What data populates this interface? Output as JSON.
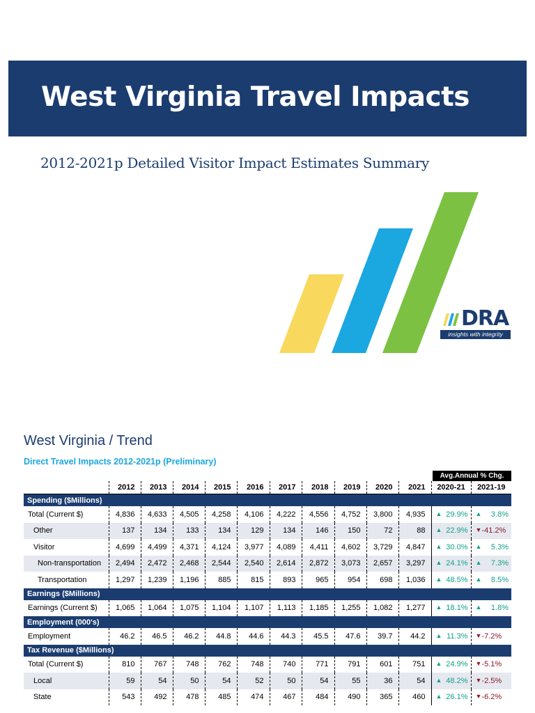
{
  "title": "West Virginia Travel Impacts",
  "subtitle": "2012-2021p Detailed Visitor Impact Estimates Summary",
  "logo": {
    "name": "DRA",
    "tagline": "insights with integrity",
    "mark_icon": "bar-stripes-icon"
  },
  "decor": {
    "stripe_colors": [
      "#f9d85e",
      "#1ba7e0",
      "#7dc143"
    ]
  },
  "colors": {
    "navy": "#1b3c6f",
    "up": "#12a08a",
    "down": "#8b1a2b"
  },
  "section_title": "West Virginia / Trend",
  "table_caption": "Direct Travel Impacts 2012-2021p (Preliminary)",
  "table": {
    "avg_header": "Avg.Annual % Chg.",
    "years": [
      "2012",
      "2013",
      "2014",
      "2015",
      "2016",
      "2017",
      "2018",
      "2019",
      "2020",
      "2021"
    ],
    "pct_headers": [
      "2020-21",
      "2021-19"
    ],
    "sections": [
      {
        "name": "Spending ($Millions)",
        "rows": [
          {
            "label": "Total (Current $)",
            "values": [
              "4,836",
              "4,633",
              "4,505",
              "4,258",
              "4,106",
              "4,222",
              "4,556",
              "4,752",
              "3,800",
              "4,935"
            ],
            "p1": "29.9%",
            "p1dir": "up",
            "p2": "3.8%",
            "p2dir": "up"
          },
          {
            "label": "Other",
            "values": [
              "137",
              "134",
              "133",
              "134",
              "129",
              "134",
              "146",
              "150",
              "72",
              "88"
            ],
            "p1": "22.9%",
            "p1dir": "up",
            "p2": "-41.2%",
            "p2dir": "down"
          },
          {
            "label": "Visitor",
            "values": [
              "4,699",
              "4,499",
              "4,371",
              "4,124",
              "3,977",
              "4,089",
              "4,411",
              "4,602",
              "3,729",
              "4,847"
            ],
            "p1": "30.0%",
            "p1dir": "up",
            "p2": "5.3%",
            "p2dir": "up"
          },
          {
            "label": "Non-transportation",
            "values": [
              "2,494",
              "2,472",
              "2,468",
              "2,544",
              "2,540",
              "2,614",
              "2,872",
              "3,073",
              "2,657",
              "3,297"
            ],
            "p1": "24.1%",
            "p1dir": "up",
            "p2": "7.3%",
            "p2dir": "up"
          },
          {
            "label": "Transportation",
            "values": [
              "1,297",
              "1,239",
              "1,196",
              "885",
              "815",
              "893",
              "965",
              "954",
              "698",
              "1,036"
            ],
            "p1": "48.5%",
            "p1dir": "up",
            "p2": "8.5%",
            "p2dir": "up"
          }
        ]
      },
      {
        "name": "Earnings ($Millions)",
        "rows": [
          {
            "label": "Earnings (Current $)",
            "values": [
              "1,065",
              "1,064",
              "1,075",
              "1,104",
              "1,107",
              "1,113",
              "1,185",
              "1,255",
              "1,082",
              "1,277"
            ],
            "p1": "18.1%",
            "p1dir": "up",
            "p2": "1.8%",
            "p2dir": "up"
          }
        ]
      },
      {
        "name": "Employment (000's)",
        "rows": [
          {
            "label": "Employment",
            "values": [
              "46.2",
              "46.5",
              "46.2",
              "44.8",
              "44.6",
              "44.3",
              "45.5",
              "47.6",
              "39.7",
              "44.2"
            ],
            "p1": "11.3%",
            "p1dir": "up",
            "p2": "-7.2%",
            "p2dir": "down"
          }
        ]
      },
      {
        "name": "Tax Revenue ($Millions)",
        "rows": [
          {
            "label": "Total (Current $)",
            "values": [
              "810",
              "767",
              "748",
              "762",
              "748",
              "740",
              "771",
              "791",
              "601",
              "751"
            ],
            "p1": "24.9%",
            "p1dir": "up",
            "p2": "-5.1%",
            "p2dir": "down"
          },
          {
            "label": "Local",
            "values": [
              "59",
              "54",
              "50",
              "54",
              "52",
              "50",
              "54",
              "55",
              "36",
              "54"
            ],
            "p1": "48.2%",
            "p1dir": "up",
            "p2": "-2.5%",
            "p2dir": "down"
          },
          {
            "label": "State",
            "values": [
              "543",
              "492",
              "478",
              "485",
              "474",
              "467",
              "484",
              "490",
              "365",
              "460"
            ],
            "p1": "26.1%",
            "p1dir": "up",
            "p2": "-6.2%",
            "p2dir": "down"
          }
        ]
      }
    ]
  }
}
